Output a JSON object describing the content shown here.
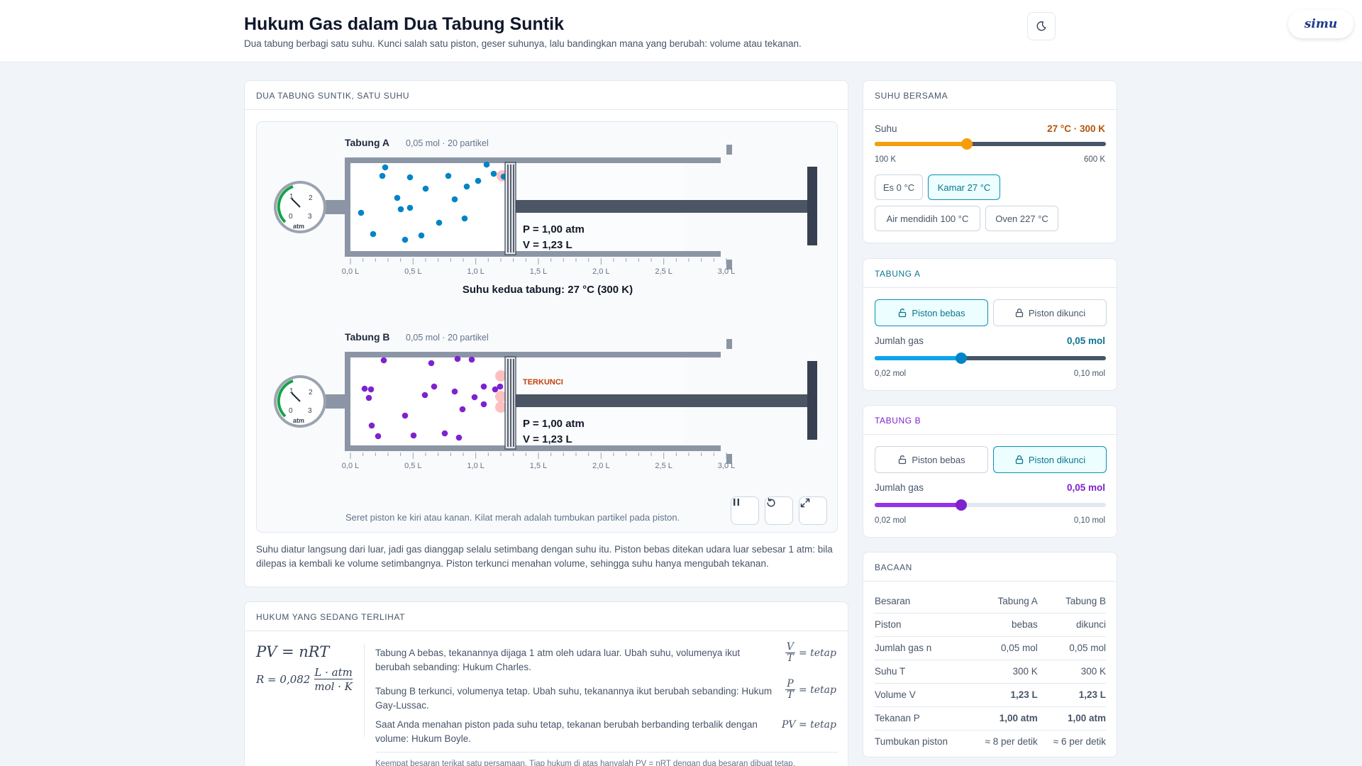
{
  "header": {
    "title": "Hukum Gas dalam Dua Tabung Suntik",
    "subtitle": "Dua tabung berbagi satu suhu. Kunci salah satu piston, geser suhunya, lalu bandingkan mana yang berubah: volume atau tekanan.",
    "logo": "simu"
  },
  "sim": {
    "heading": "DUA TABUNG SUNTIK, SATU SUHU",
    "tubeA": {
      "name": "Tabung A",
      "info": "0,05 mol · 20 partikel",
      "pressure": "P = 1,00 atm",
      "volume": "V = 1,23 L",
      "particle_color": "#0284c7"
    },
    "tubeB": {
      "name": "Tabung B",
      "info": "0,05 mol · 20 partikel",
      "pressure": "P = 1,00 atm",
      "volume": "V = 1,23 L",
      "locked_label": "TERKUNCI",
      "particle_color": "#7e22ce"
    },
    "gauge": {
      "ticks": [
        "0",
        "1",
        "2",
        "3"
      ],
      "unit": "atm"
    },
    "scale_ticks": [
      "0,0 L",
      "0,5 L",
      "1,0 L",
      "1,5 L",
      "2,0 L",
      "2,5 L",
      "3,0 L"
    ],
    "temp_caption": "Suhu kedua tabung: 27 °C  (300 K)",
    "hint": "Seret piston ke kiri atau kanan. Kilat merah adalah tumbukan partikel pada piston.",
    "controls": {
      "pause": "pause-icon",
      "reset": "reset-icon",
      "fullscreen": "fullscreen-icon"
    }
  },
  "description": "Suhu diatur langsung dari luar, jadi gas dianggap selalu setimbang dengan suhu itu. Piston bebas ditekan udara luar sebesar 1 atm: bila dilepas ia kembali ke volume setimbangnya. Piston terkunci menahan volume, sehingga suhu hanya mengubah tekanan.",
  "laws": {
    "heading": "HUKUM YANG SEDANG TERLIHAT",
    "main_formula": "PV = nRT",
    "r_prefix": "R = 0,082",
    "r_num": "L · atm",
    "r_den": "mol · K",
    "items": [
      {
        "text": "Tabung A bebas, tekanannya dijaga 1 atm oleh udara luar. Ubah suhu, volumenya ikut berubah sebanding: Hukum Charles.",
        "num": "V",
        "den": "T",
        "rhs": "= tetap"
      },
      {
        "text": "Tabung B terkunci, volumenya tetap. Ubah suhu, tekanannya ikut berubah sebanding: Hukum Gay-Lussac.",
        "num": "P",
        "den": "T",
        "rhs": "= tetap"
      },
      {
        "text": "Saat Anda menahan piston pada suhu tetap, tekanan berubah berbanding terbalik dengan volume: Hukum Boyle.",
        "formula": "PV = tetap"
      }
    ],
    "footnote": "Keempat besaran terikat satu persamaan. Tiap hukum di atas hanyalah PV = nRT dengan dua besaran dibuat tetap."
  },
  "temperature": {
    "heading": "SUHU BERSAMA",
    "label": "Suhu",
    "value": "27 °C · 300 K",
    "min": "100 K",
    "max": "600 K",
    "fraction": 0.4,
    "color": "#f59e0b",
    "value_color": "#b45309",
    "presets": [
      "Es 0 °C",
      "Kamar 27 °C",
      "Air mendidih 100 °C",
      "Oven 227 °C"
    ],
    "active_preset": 1
  },
  "tabungA": {
    "heading": "TABUNG A",
    "free": "Piston bebas",
    "locked": "Piston dikunci",
    "active": "free",
    "gas_label": "Jumlah gas",
    "gas_value": "0,05 mol",
    "min": "0,02 mol",
    "max": "0,10 mol",
    "fraction": 0.375,
    "color": "#0ea5e9"
  },
  "tabungB": {
    "heading": "TABUNG B",
    "free": "Piston bebas",
    "locked": "Piston dikunci",
    "active": "locked",
    "gas_label": "Jumlah gas",
    "gas_value": "0,05 mol",
    "min": "0,02 mol",
    "max": "0,10 mol",
    "fraction": 0.375,
    "color": "#9333ea"
  },
  "readings": {
    "heading": "BACAAN",
    "columns": [
      "Besaran",
      "Tabung A",
      "Tabung B"
    ],
    "rows": [
      [
        "Piston",
        "bebas",
        "dikunci"
      ],
      [
        "Jumlah gas n",
        "0,05 mol",
        "0,05 mol"
      ],
      [
        "Suhu T",
        "300 K",
        "300 K"
      ],
      [
        "Volume V",
        "1,23 L",
        "1,23 L"
      ],
      [
        "Tekanan P",
        "1,00 atm",
        "1,00 atm"
      ],
      [
        "Tumbukan piston",
        "≈ 8 per detik",
        "≈ 6 per detik"
      ]
    ]
  }
}
